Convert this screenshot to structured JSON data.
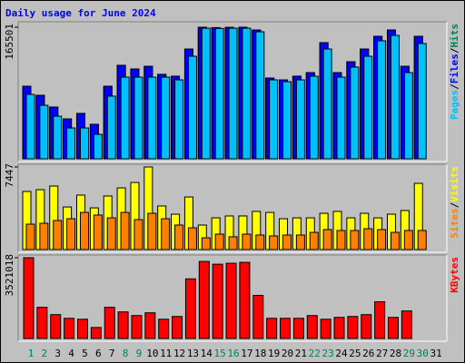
{
  "chart_data": [
    {
      "type": "bar",
      "title": "Daily usage for June 2024",
      "ylim": [
        0,
        165501
      ],
      "yticks": [
        165501
      ],
      "legend_separator": "/",
      "series": [
        {
          "name": "Hits",
          "color": "#00805c",
          "values": [
            91300,
            79900,
            65100,
            50200,
            57100,
            43400,
            91300,
            117600,
            113000,
            116400,
            106200,
            103900,
            138100,
            165501,
            165000,
            165300,
            165501,
            162000,
            101600,
            99300,
            103900,
            108400,
            146100,
            108400,
            122100,
            138100,
            154100,
            162000,
            116400,
            154100,
            null
          ]
        },
        {
          "name": "Files",
          "color": "#0000ff",
          "values": [
            91300,
            79900,
            65100,
            50200,
            57100,
            43400,
            91300,
            117600,
            113000,
            116400,
            106200,
            103900,
            138100,
            165501,
            165000,
            165300,
            165501,
            162000,
            101600,
            99300,
            103900,
            108400,
            146100,
            108400,
            122100,
            138100,
            154100,
            162000,
            116400,
            154100,
            null
          ]
        },
        {
          "name": "Pages",
          "color": "#00c0ff",
          "values": [
            81000,
            67300,
            53600,
            38800,
            38800,
            30800,
            78800,
            102700,
            102700,
            102700,
            102700,
            99300,
            129000,
            164300,
            164000,
            164300,
            164300,
            159800,
            99300,
            97000,
            99300,
            103900,
            138100,
            102700,
            115300,
            129000,
            148400,
            155200,
            108400,
            145000,
            null
          ]
        }
      ]
    },
    {
      "type": "bar",
      "ylim": [
        0,
        7447
      ],
      "yticks": [
        7447
      ],
      "legend_separator": "/",
      "series": [
        {
          "name": "Visits",
          "color": "#ffff00",
          "values": [
            5240,
            5400,
            5730,
            3840,
            4910,
            3760,
            4830,
            5560,
            6050,
            7447,
            3930,
            3190,
            4740,
            2210,
            2860,
            3030,
            3030,
            3440,
            3350,
            2780,
            2860,
            2860,
            3270,
            3440,
            2860,
            3270,
            2860,
            3190,
            3520,
            5970,
            null
          ]
        },
        {
          "name": "Sites",
          "color": "#ff8000",
          "values": [
            2290,
            2370,
            2620,
            2780,
            3350,
            3110,
            2860,
            3350,
            2700,
            3270,
            2780,
            2210,
            1960,
            1060,
            1390,
            1150,
            1390,
            1310,
            1230,
            1310,
            1310,
            1550,
            1800,
            1720,
            1720,
            1880,
            1800,
            1550,
            1720,
            1720,
            null
          ]
        }
      ]
    },
    {
      "type": "bar",
      "ylim": [
        0,
        3521018
      ],
      "yticks": [
        3521018
      ],
      "categories": [
        "1",
        "2",
        "3",
        "4",
        "5",
        "6",
        "7",
        "8",
        "9",
        "10",
        "11",
        "12",
        "13",
        "14",
        "15",
        "16",
        "17",
        "18",
        "19",
        "20",
        "21",
        "22",
        "23",
        "24",
        "25",
        "26",
        "27",
        "28",
        "29",
        "30",
        "31"
      ],
      "category_colors": [
        "#00805c",
        "#00805c",
        "#000000",
        "#000000",
        "#000000",
        "#000000",
        "#000000",
        "#00805c",
        "#00805c",
        "#000000",
        "#000000",
        "#000000",
        "#000000",
        "#000000",
        "#00805c",
        "#00805c",
        "#000000",
        "#000000",
        "#000000",
        "#000000",
        "#000000",
        "#00805c",
        "#00805c",
        "#000000",
        "#000000",
        "#000000",
        "#000000",
        "#000000",
        "#00805c",
        "#00805c",
        "#000000"
      ],
      "series": [
        {
          "name": "KBytes",
          "color": "#ff0000",
          "values": [
            3521018,
            1360000,
            1040000,
            880000,
            840000,
            480000,
            1360000,
            1160000,
            1000000,
            1120000,
            840000,
            960000,
            2600000,
            3360000,
            3240000,
            3280000,
            3320000,
            1880000,
            880000,
            880000,
            880000,
            1000000,
            840000,
            920000,
            960000,
            1040000,
            1600000,
            920000,
            1200000,
            null,
            null
          ]
        }
      ]
    }
  ]
}
